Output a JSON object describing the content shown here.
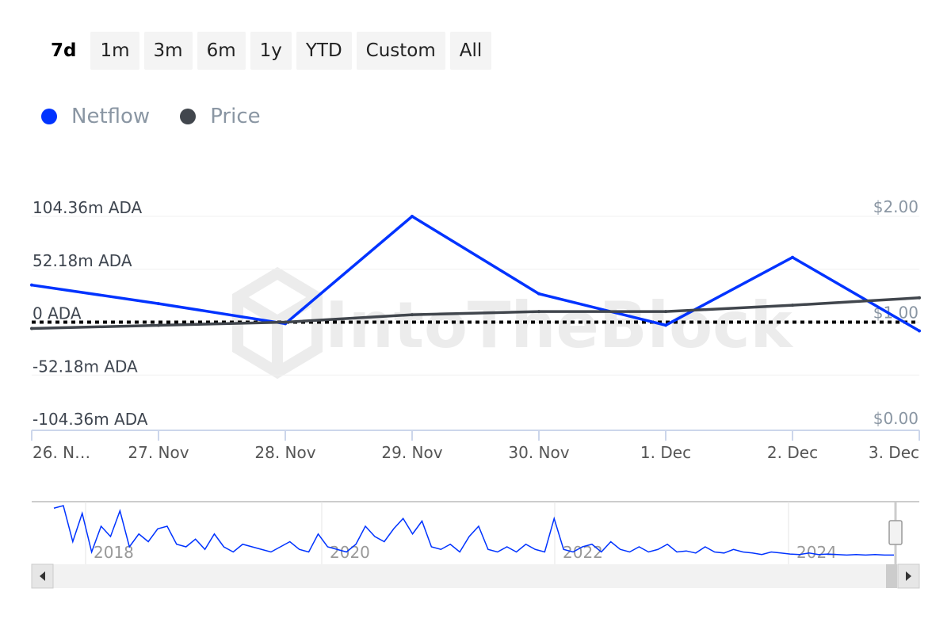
{
  "range_buttons": [
    "7d",
    "1m",
    "3m",
    "6m",
    "1y",
    "YTD",
    "Custom",
    "All"
  ],
  "active_range": "7d",
  "legend": [
    {
      "name": "Netflow",
      "color": "#0033ff"
    },
    {
      "name": "Price",
      "color": "#41464d"
    }
  ],
  "watermark": "IntoTheBlock",
  "chart_data": {
    "type": "line",
    "categories": [
      "26. Nov",
      "27. Nov",
      "28. Nov",
      "29. Nov",
      "30. Nov",
      "1. Dec",
      "2. Dec",
      "3. Dec"
    ],
    "x_tick_labels": [
      "26. N…",
      "27. Nov",
      "28. Nov",
      "29. Nov",
      "30. Nov",
      "1. Dec",
      "2. Dec",
      "3. Dec"
    ],
    "y_left": {
      "ticks": [
        "104.36m ADA",
        "52.18m ADA",
        "0 ADA",
        "-52.18m ADA",
        "-104.36m ADA"
      ],
      "range": [
        -104.36,
        104.36
      ],
      "unit": "m ADA"
    },
    "y_right": {
      "ticks": [
        "$2.00",
        "$1.00",
        "$0.00"
      ],
      "range": [
        0,
        2
      ]
    },
    "series": [
      {
        "name": "Netflow",
        "axis": "left",
        "color": "#0033ff",
        "values": [
          36.6,
          18.3,
          -1.5,
          104.36,
          28,
          -3,
          63.9,
          -8.6
        ]
      },
      {
        "name": "Price",
        "axis": "right",
        "color": "#41464d",
        "values": [
          0.94,
          0.97,
          1.0,
          1.07,
          1.1,
          1.1,
          1.16,
          1.23
        ]
      }
    ],
    "grid": true,
    "zero_line": "dotted",
    "navigator": {
      "year_labels": [
        "2018",
        "2020",
        "2022",
        "2024"
      ],
      "values": [
        95,
        100,
        30,
        85,
        10,
        60,
        40,
        90,
        20,
        45,
        30,
        55,
        60,
        25,
        20,
        35,
        15,
        45,
        20,
        10,
        25,
        20,
        15,
        10,
        20,
        30,
        15,
        10,
        45,
        20,
        15,
        10,
        25,
        60,
        40,
        30,
        55,
        75,
        45,
        70,
        20,
        15,
        25,
        10,
        40,
        60,
        15,
        10,
        20,
        10,
        25,
        15,
        10,
        75,
        15,
        10,
        20,
        25,
        10,
        30,
        15,
        10,
        20,
        10,
        15,
        25,
        10,
        12,
        8,
        20,
        10,
        8,
        15,
        10,
        8,
        5,
        10,
        8,
        6,
        5,
        8,
        5,
        6,
        5,
        4,
        5,
        4,
        5,
        4,
        4
      ]
    }
  }
}
